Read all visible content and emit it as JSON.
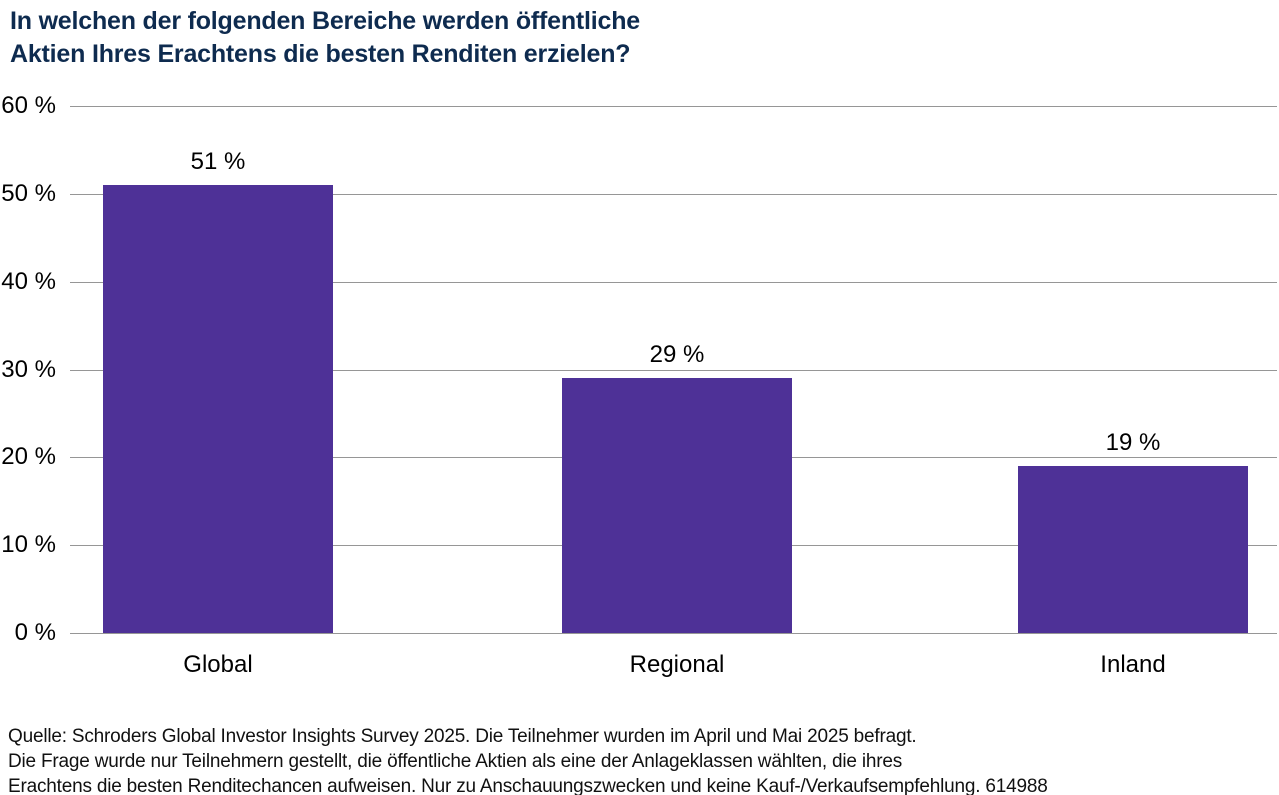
{
  "title": {
    "line1": "In welchen der folgenden Bereiche werden öffentliche",
    "line2": "Aktien Ihres Erachtens die besten Renditen erzielen?"
  },
  "chart_data": {
    "type": "bar",
    "title": "In welchen der folgenden Bereiche werden öffentliche Aktien Ihres Erachtens die besten Renditen erzielen?",
    "categories": [
      "Global",
      "Regional",
      "Inland"
    ],
    "values": [
      51,
      29,
      19
    ],
    "value_labels": [
      "51 %",
      "29 %",
      "19 %"
    ],
    "y_ticks": [
      0,
      10,
      20,
      30,
      40,
      50,
      60
    ],
    "y_tick_labels": [
      "0 %",
      "10 %",
      "20 %",
      "30 %",
      "40 %",
      "50 %",
      "60 %"
    ],
    "ylim": [
      0,
      60
    ],
    "xlabel": "",
    "ylabel": "",
    "grid": true,
    "legend": false,
    "bar_color": "#4E3197"
  },
  "colors": {
    "title_text": "#0E2B4F",
    "bar": "#4E3197",
    "gridline": "#969696",
    "axis_text": "#000000"
  },
  "footer": {
    "line1": "Quelle: Schroders Global Investor Insights Survey 2025. Die Teilnehmer wurden im April und Mai 2025 befragt.",
    "line2": "Die Frage wurde nur Teilnehmern gestellt, die öffentliche Aktien als eine der Anlageklassen wählten, die ihres",
    "line3": "Erachtens die besten Renditechancen aufweisen. Nur zu Anschauungszwecken und keine Kauf-/Verkaufsempfehlung. 614988"
  }
}
